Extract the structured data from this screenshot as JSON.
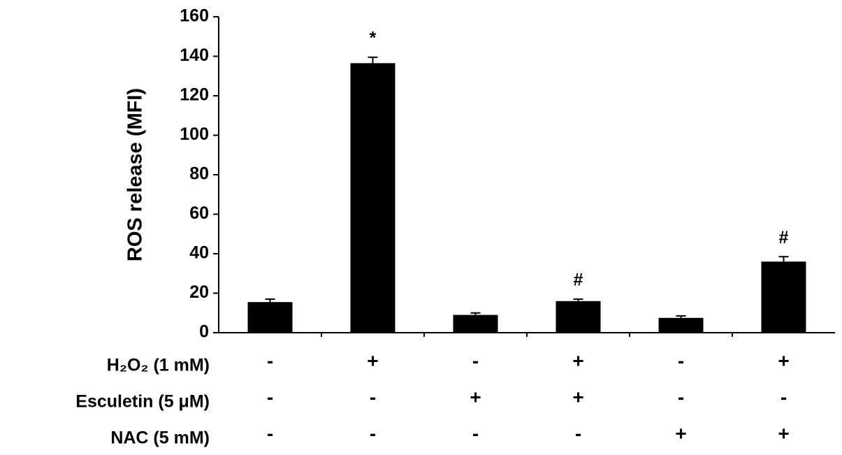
{
  "chart_data": {
    "type": "bar",
    "ylabel": "ROS release (MFI)",
    "values": [
      15.5,
      136.5,
      9,
      16,
      7.5,
      36
    ],
    "errors": [
      1.5,
      3,
      1,
      1,
      1,
      2.5
    ],
    "annotations": [
      null,
      "*",
      null,
      "#",
      null,
      "#"
    ],
    "color": "#000000",
    "ylim": [
      0,
      160
    ],
    "yticks": [
      0,
      20,
      40,
      60,
      80,
      100,
      120,
      140,
      160
    ],
    "treatments": [
      {
        "label": "H₂O₂ (1 mM)",
        "values": [
          "-",
          "+",
          "-",
          "+",
          "-",
          "+"
        ]
      },
      {
        "label": "Esculetin (5 μM)",
        "values": [
          "-",
          "-",
          "+",
          "+",
          "-",
          "-"
        ]
      },
      {
        "label": "NAC (5 mM)",
        "values": [
          "-",
          "-",
          "-",
          "-",
          "+",
          "+"
        ]
      }
    ]
  }
}
